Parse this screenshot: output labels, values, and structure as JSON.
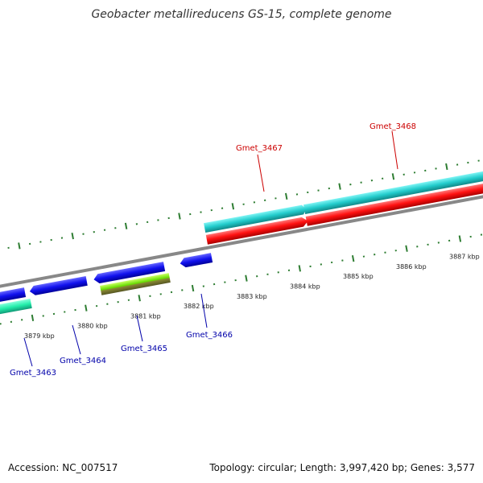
{
  "title": "Geobacter metallireducens GS-15, complete genome",
  "footer": {
    "accession": "Accession: NC_007517",
    "summary": "Topology: circular; Length: 3,997,420 bp; Genes: 3,577"
  },
  "colors": {
    "backbone": "#888888",
    "tick": "#2e7d32",
    "forward_cds": "#22cccc",
    "reverse_cds_red": "#ff1111",
    "reverse_cds_blue": "#1111ee",
    "reverse_cds_green": "#66dd00",
    "reverse_cds_teal": "#22eeaa",
    "label_forward": "#cc0000",
    "label_reverse": "#0000aa"
  },
  "tick_labels": [
    "3879 kbp",
    "3880 kbp",
    "3881 kbp",
    "3882 kbp",
    "3883 kbp",
    "3884 kbp",
    "3885 kbp",
    "3886 kbp",
    "3887 kbp"
  ],
  "genes": [
    {
      "name": "Gmet_3463",
      "strand": "reverse"
    },
    {
      "name": "Gmet_3464",
      "strand": "reverse"
    },
    {
      "name": "Gmet_3465",
      "strand": "reverse"
    },
    {
      "name": "Gmet_3466",
      "strand": "reverse"
    },
    {
      "name": "Gmet_3467",
      "strand": "forward"
    },
    {
      "name": "Gmet_3468",
      "strand": "forward"
    }
  ]
}
